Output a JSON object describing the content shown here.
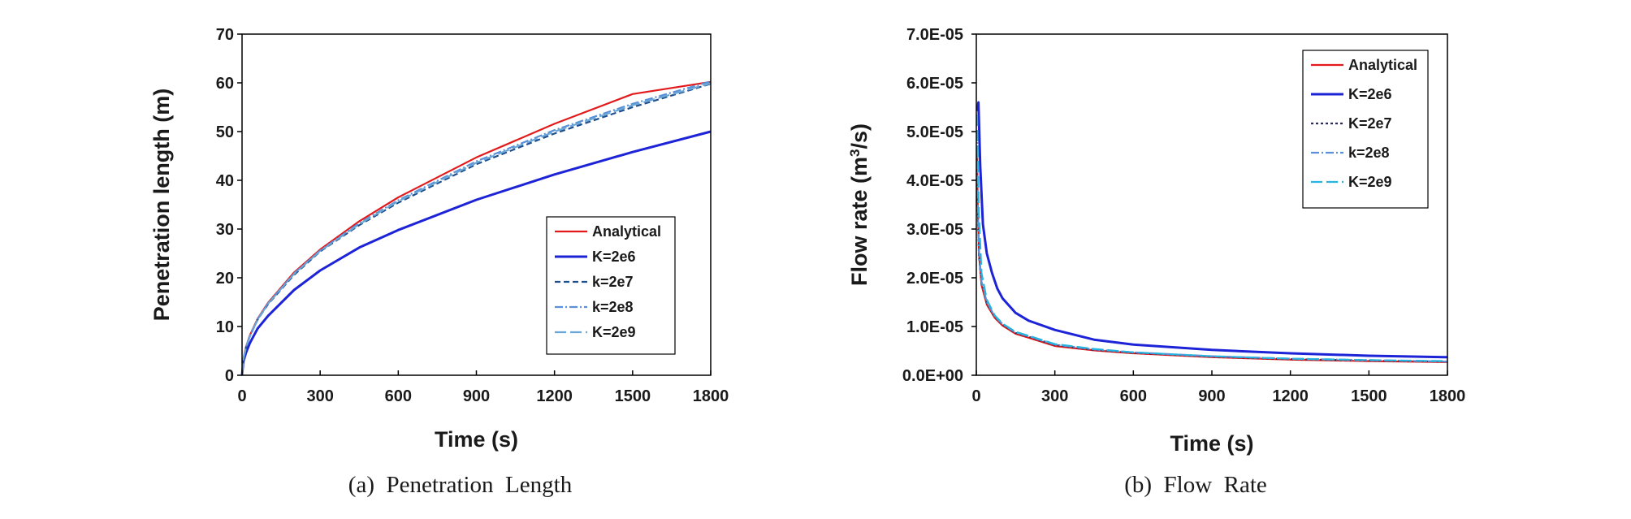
{
  "chart_data": [
    {
      "type": "line",
      "caption": "(a)  Penetration  Length",
      "xlabel": "Time (s)",
      "ylabel": "Penetration length (m)",
      "xlim": [
        0,
        1800
      ],
      "ylim": [
        0,
        70
      ],
      "xticks": [
        0,
        300,
        600,
        900,
        1200,
        1500,
        1800
      ],
      "yticks": [
        0,
        10,
        20,
        30,
        40,
        50,
        60,
        70
      ],
      "xtick_labels": [
        "0",
        "300",
        "600",
        "900",
        "1200",
        "1500",
        "1800"
      ],
      "ytick_labels": [
        "0",
        "10",
        "20",
        "30",
        "40",
        "50",
        "60",
        "70"
      ],
      "legend_position": "lower-right",
      "series": [
        {
          "name": "Analytical",
          "color": "#e31a1c",
          "dash": "",
          "x": [
            0,
            5,
            15,
            30,
            60,
            100,
            200,
            300,
            450,
            600,
            900,
            1200,
            1500,
            1800
          ],
          "values": [
            0,
            3.3,
            5.8,
            8.2,
            11.6,
            14.9,
            21.1,
            25.8,
            31.6,
            36.5,
            44.7,
            51.6,
            57.7,
            60.2
          ]
        },
        {
          "name": "K=2e6",
          "color": "#1d23d6",
          "dash": "",
          "x": [
            0,
            5,
            15,
            30,
            60,
            100,
            200,
            300,
            450,
            600,
            900,
            1200,
            1500,
            1800
          ],
          "values": [
            0,
            2.8,
            4.6,
            6.6,
            9.6,
            12.2,
            17.5,
            21.5,
            26.2,
            29.8,
            36.0,
            41.2,
            45.8,
            50.0
          ]
        },
        {
          "name": "k=2e7",
          "color": "#1f4e8c",
          "dash": "7,4",
          "x": [
            0,
            5,
            15,
            30,
            60,
            100,
            200,
            300,
            450,
            600,
            900,
            1200,
            1500,
            1800
          ],
          "values": [
            0,
            3.2,
            5.6,
            8.0,
            11.4,
            14.6,
            20.6,
            25.4,
            30.8,
            35.4,
            43.3,
            49.6,
            55.0,
            59.8
          ]
        },
        {
          "name": "k=2e8",
          "color": "#5b8fd6",
          "dash": "10,3,2,3",
          "x": [
            0,
            5,
            15,
            30,
            60,
            100,
            200,
            300,
            450,
            600,
            900,
            1200,
            1500,
            1800
          ],
          "values": [
            0,
            3.3,
            5.7,
            8.1,
            11.5,
            14.8,
            20.9,
            25.6,
            31.2,
            35.9,
            43.9,
            50.3,
            55.7,
            60.3
          ]
        },
        {
          "name": "K=2e9",
          "color": "#6aa6d6",
          "dash": "14,5",
          "x": [
            0,
            5,
            15,
            30,
            60,
            100,
            200,
            300,
            450,
            600,
            900,
            1200,
            1500,
            1800
          ],
          "values": [
            0,
            3.2,
            5.6,
            8.0,
            11.4,
            14.7,
            20.8,
            25.5,
            31.0,
            35.7,
            43.6,
            50.0,
            55.4,
            59.9
          ]
        }
      ]
    },
    {
      "type": "line",
      "caption": "(b)  Flow  Rate",
      "xlabel": "Time (s)",
      "ylabel": "Flow rate (m³/s)",
      "ylabel_main": "Flow rate (m",
      "ylabel_sup": "3",
      "ylabel_end": "/s)",
      "xlim": [
        0,
        1800
      ],
      "ylim": [
        0,
        7e-05
      ],
      "xticks": [
        0,
        300,
        600,
        900,
        1200,
        1500,
        1800
      ],
      "yticks": [
        0,
        1e-05,
        2e-05,
        3e-05,
        4e-05,
        5e-05,
        6e-05,
        7e-05
      ],
      "xtick_labels": [
        "0",
        "300",
        "600",
        "900",
        "1200",
        "1500",
        "1800"
      ],
      "ytick_labels": [
        "0.0E+00",
        "1.0E-05",
        "2.0E-05",
        "3.0E-05",
        "4.0E-05",
        "5.0E-05",
        "6.0E-05",
        "7.0E-05"
      ],
      "legend_position": "top-right",
      "series": [
        {
          "name": "Analytical",
          "color": "#e31a1c",
          "dash": "",
          "x": [
            3,
            5,
            10,
            20,
            40,
            70,
            100,
            150,
            200,
            300,
            450,
            600,
            900,
            1200,
            1500,
            1800
          ],
          "values": [
            4.7e-05,
            3.6e-05,
            2.5e-05,
            1.85e-05,
            1.45e-05,
            1.18e-05,
            1.02e-05,
            8.5e-06,
            7.7e-06,
            6e-06,
            5.1e-06,
            4.5e-06,
            3.7e-06,
            3.2e-06,
            2.9e-06,
            2.7e-06
          ]
        },
        {
          "name": "K=2e6",
          "color": "#1d23d6",
          "dash": "",
          "x": [
            3,
            8,
            15,
            25,
            40,
            60,
            80,
            100,
            150,
            200,
            300,
            450,
            600,
            900,
            1200,
            1500,
            1800
          ],
          "values": [
            5.42e-05,
            5.6e-05,
            4.3e-05,
            3.1e-05,
            2.5e-05,
            2.1e-05,
            1.78e-05,
            1.58e-05,
            1.28e-05,
            1.12e-05,
            9.3e-06,
            7.3e-06,
            6.3e-06,
            5.2e-06,
            4.5e-06,
            4e-06,
            3.7e-06
          ]
        },
        {
          "name": "K=2e7",
          "color": "#2b2b55",
          "dash": "3,3",
          "x": [
            3,
            5,
            10,
            20,
            40,
            70,
            100,
            150,
            200,
            300,
            450,
            600,
            900,
            1200,
            1500,
            1800
          ],
          "values": [
            4.5e-05,
            3.5e-05,
            2.45e-05,
            1.9e-05,
            1.48e-05,
            1.2e-05,
            1.04e-05,
            8.7e-06,
            7.9e-06,
            6.2e-06,
            5.2e-06,
            4.6e-06,
            3.8e-06,
            3.3e-06,
            3e-06,
            2.8e-06
          ]
        },
        {
          "name": "k=2e8",
          "color": "#5b8fd6",
          "dash": "10,3,2,3",
          "x": [
            3,
            5,
            10,
            20,
            40,
            70,
            100,
            150,
            200,
            300,
            450,
            600,
            900,
            1200,
            1500,
            1800
          ],
          "values": [
            5e-05,
            3.8e-05,
            2.55e-05,
            1.92e-05,
            1.5e-05,
            1.21e-05,
            1.05e-05,
            8.8e-06,
            8e-06,
            6.3e-06,
            5.3e-06,
            4.7e-06,
            3.9e-06,
            3.4e-06,
            3.1e-06,
            2.8e-06
          ]
        },
        {
          "name": "K=2e9",
          "color": "#27b4e0",
          "dash": "14,5",
          "x": [
            3,
            5,
            10,
            20,
            40,
            70,
            100,
            150,
            200,
            300,
            450,
            600,
            900,
            1200,
            1500,
            1800
          ],
          "values": [
            5.35e-05,
            4.7e-05,
            3.3e-05,
            2.1e-05,
            1.55e-05,
            1.23e-05,
            1.06e-05,
            8.9e-06,
            8.1e-06,
            6.4e-06,
            5.4e-06,
            4.7e-06,
            3.9e-06,
            3.4e-06,
            3.1e-06,
            2.9e-06
          ]
        }
      ]
    }
  ]
}
